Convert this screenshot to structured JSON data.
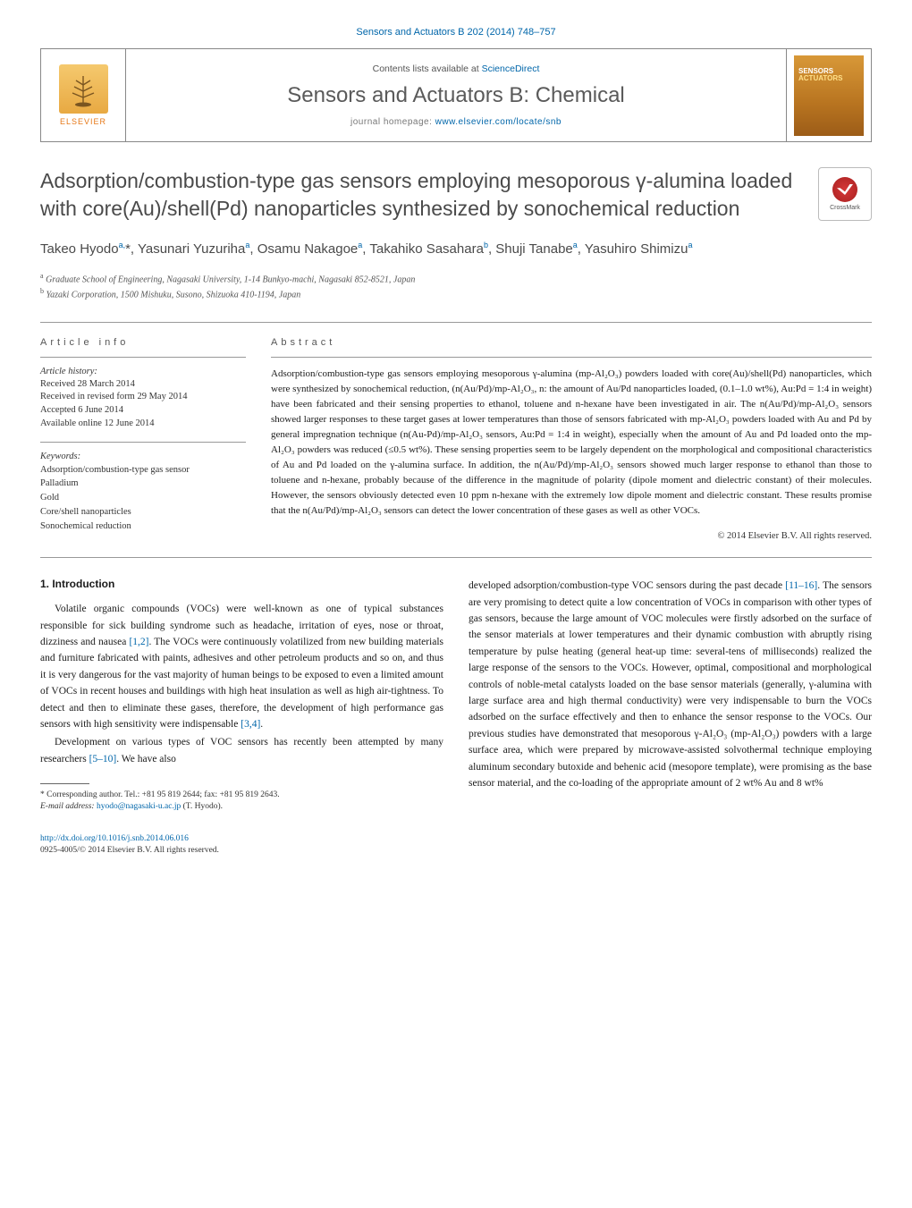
{
  "journal_ref": "Sensors and Actuators B 202 (2014) 748–757",
  "header": {
    "publisher_label": "ELSEVIER",
    "contents_prefix": "Contents lists available at ",
    "contents_link": "ScienceDirect",
    "journal_name": "Sensors and Actuators B: Chemical",
    "homepage_prefix": "journal homepage: ",
    "homepage_url": "www.elsevier.com/locate/snb",
    "cover_title_line1": "SENSORS",
    "cover_title_line2": "ACTUATORS"
  },
  "crossmark_label": "CrossMark",
  "article_title": "Adsorption/combustion-type gas sensors employing mesoporous γ-alumina loaded with core(Au)/shell(Pd) nanoparticles synthesized by sonochemical reduction",
  "authors_html": "Takeo Hyodo<sup>a,</sup>*, Yasunari Yuzuriha<sup>a</sup>, Osamu Nakagoe<sup>a</sup>, Takahiko Sasahara<sup>b</sup>, Shuji Tanabe<sup>a</sup>, Yasuhiro Shimizu<sup>a</sup>",
  "affiliations": [
    "a Graduate School of Engineering, Nagasaki University, 1-14 Bunkyo-machi, Nagasaki 852-8521, Japan",
    "b Yazaki Corporation, 1500 Mishuku, Susono, Shizuoka 410-1194, Japan"
  ],
  "info": {
    "heading": "article info",
    "history_label": "Article history:",
    "history": [
      "Received 28 March 2014",
      "Received in revised form 29 May 2014",
      "Accepted 6 June 2014",
      "Available online 12 June 2014"
    ],
    "keywords_label": "Keywords:",
    "keywords": [
      "Adsorption/combustion-type gas sensor",
      "Palladium",
      "Gold",
      "Core/shell nanoparticles",
      "Sonochemical reduction"
    ]
  },
  "abstract": {
    "heading": "abstract",
    "text": "Adsorption/combustion-type gas sensors employing mesoporous γ-alumina (mp-Al₂O₃) powders loaded with core(Au)/shell(Pd) nanoparticles, which were synthesized by sonochemical reduction, (n(Au/Pd)/mp-Al₂O₃, n: the amount of Au/Pd nanoparticles loaded, (0.1–1.0 wt%), Au:Pd = 1:4 in weight) have been fabricated and their sensing properties to ethanol, toluene and n-hexane have been investigated in air. The n(Au/Pd)/mp-Al₂O₃ sensors showed larger responses to these target gases at lower temperatures than those of sensors fabricated with mp-Al₂O₃ powders loaded with Au and Pd by general impregnation technique (n(Au-Pd)/mp-Al₂O₃ sensors, Au:Pd = 1:4 in weight), especially when the amount of Au and Pd loaded onto the mp-Al₂O₃ powders was reduced (≤0.5 wt%). These sensing properties seem to be largely dependent on the morphological and compositional characteristics of Au and Pd loaded on the γ-alumina surface. In addition, the n(Au/Pd)/mp-Al₂O₃ sensors showed much larger response to ethanol than those to toluene and n-hexane, probably because of the difference in the magnitude of polarity (dipole moment and dielectric constant) of their molecules. However, the sensors obviously detected even 10 ppm n-hexane with the extremely low dipole moment and dielectric constant. These results promise that the n(Au/Pd)/mp-Al₂O₃ sensors can detect the lower concentration of these gases as well as other VOCs.",
    "copyright": "© 2014 Elsevier B.V. All rights reserved."
  },
  "body": {
    "section_heading": "1. Introduction",
    "para1": "Volatile organic compounds (VOCs) were well-known as one of typical substances responsible for sick building syndrome such as headache, irritation of eyes, nose or throat, dizziness and nausea [1,2]. The VOCs were continuously volatilized from new building materials and furniture fabricated with paints, adhesives and other petroleum products and so on, and thus it is very dangerous for the vast majority of human beings to be exposed to even a limited amount of VOCs in recent houses and buildings with high heat insulation as well as high air-tightness. To detect and then to eliminate these gases, therefore, the development of high performance gas sensors with high sensitivity were indispensable [3,4].",
    "para2": "Development on various types of VOC sensors has recently been attempted by many researchers [5–10]. We have also",
    "para3": "developed adsorption/combustion-type VOC sensors during the past decade [11–16]. The sensors are very promising to detect quite a low concentration of VOCs in comparison with other types of gas sensors, because the large amount of VOC molecules were firstly adsorbed on the surface of the sensor materials at lower temperatures and their dynamic combustion with abruptly rising temperature by pulse heating (general heat-up time: several-tens of milliseconds) realized the large response of the sensors to the VOCs. However, optimal, compositional and morphological controls of noble-metal catalysts loaded on the base sensor materials (generally, γ-alumina with large surface area and high thermal conductivity) were very indispensable to burn the VOCs adsorbed on the surface effectively and then to enhance the sensor response to the VOCs. Our previous studies have demonstrated that mesoporous γ-Al₂O₃ (mp-Al₂O₃) powders with a large surface area, which were prepared by microwave-assisted solvothermal technique employing aluminum secondary butoxide and behenic acid (mesopore template), were promising as the base sensor material, and the co-loading of the appropriate amount of 2 wt% Au and 8 wt%"
  },
  "footnote": {
    "corr_line": "* Corresponding author. Tel.: +81 95 819 2644; fax: +81 95 819 2643.",
    "email_label": "E-mail address: ",
    "email": "hyodo@nagasaki-u.ac.jp",
    "email_who": " (T. Hyodo)."
  },
  "footer": {
    "doi": "http://dx.doi.org/10.1016/j.snb.2014.06.016",
    "issn_copy": "0925-4005/© 2014 Elsevier B.V. All rights reserved."
  },
  "colors": {
    "link": "#0066aa",
    "text": "#1a1a1a",
    "heading_grey": "#4a4a4a",
    "elsevier_orange": "#e67817",
    "cover_top": "#d89838",
    "cover_bottom": "#9c5c18"
  }
}
